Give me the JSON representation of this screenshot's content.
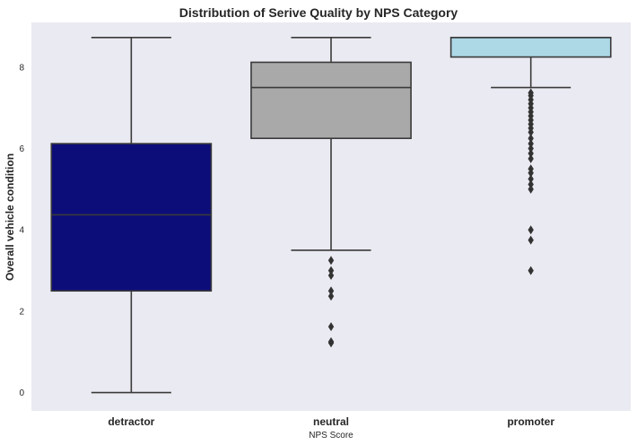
{
  "chart_data": {
    "type": "boxplot",
    "title": "Distribution of Serive Quality by NPS Category",
    "xlabel": "NPS Score",
    "ylabel": "Overall vehicle condition",
    "ylim": [
      -0.45,
      9.1
    ],
    "yticks": [
      0,
      2,
      4,
      6,
      8
    ],
    "grid": false,
    "background": "#eaeaf2",
    "categories": [
      "detractor",
      "neutral",
      "promoter"
    ],
    "boxes": [
      {
        "category": "detractor",
        "color": "#0d0d7a",
        "whisker_low": 0,
        "q1": 2.5,
        "median": 4.37,
        "q3": 6.12,
        "whisker_high": 8.73,
        "outliers": []
      },
      {
        "category": "neutral",
        "color": "#a9a9a9",
        "whisker_low": 3.5,
        "q1": 6.25,
        "median": 7.5,
        "q3": 8.12,
        "whisker_high": 8.73,
        "outliers": [
          3.25,
          3.0,
          2.88,
          2.5,
          2.37,
          1.62,
          1.25,
          1.22
        ]
      },
      {
        "category": "promoter",
        "color": "#add8e6",
        "whisker_low": 7.5,
        "q1": 8.25,
        "median": 8.73,
        "q3": 8.73,
        "whisker_high": 8.73,
        "outliers": [
          7.37,
          7.3,
          7.2,
          7.1,
          7.0,
          6.9,
          6.8,
          6.7,
          6.6,
          6.5,
          6.4,
          6.25,
          6.12,
          6.0,
          5.88,
          5.75,
          5.5,
          5.4,
          5.25,
          5.12,
          5.0,
          4.0,
          3.75,
          3.0
        ]
      }
    ]
  }
}
